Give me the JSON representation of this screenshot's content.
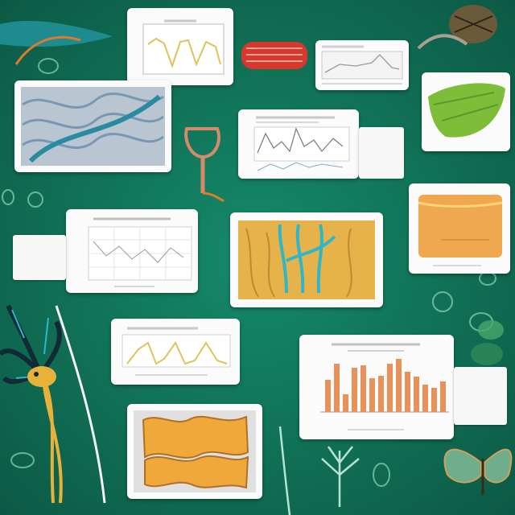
{
  "colors": {
    "background": "#127a5e",
    "background_dark": "#0c5a45",
    "card": "#fbfbfb",
    "line_yellow": "#e0c35a",
    "bar_orange": "#e8925a",
    "leaf_green": "#7dbd3a",
    "orange_panel": "#f0a850",
    "teal": "#2fb7c9",
    "red_specimen": "#d6382b"
  },
  "panels": [
    {
      "kind": "line-chart"
    },
    {
      "kind": "texture-image"
    },
    {
      "kind": "line-chart"
    },
    {
      "kind": "line-chart"
    },
    {
      "kind": "leaf-image"
    },
    {
      "kind": "scatter-table"
    },
    {
      "kind": "specimen-image"
    },
    {
      "kind": "orange-panel"
    },
    {
      "kind": "line-chart"
    },
    {
      "kind": "bar-chart"
    },
    {
      "kind": "specimen-image"
    }
  ],
  "decorations": [
    "neuron-icon",
    "leaf-icon",
    "red-specimen-icon",
    "moth-icon",
    "beetle-icon",
    "vertebra-icon",
    "cell-icons"
  ]
}
